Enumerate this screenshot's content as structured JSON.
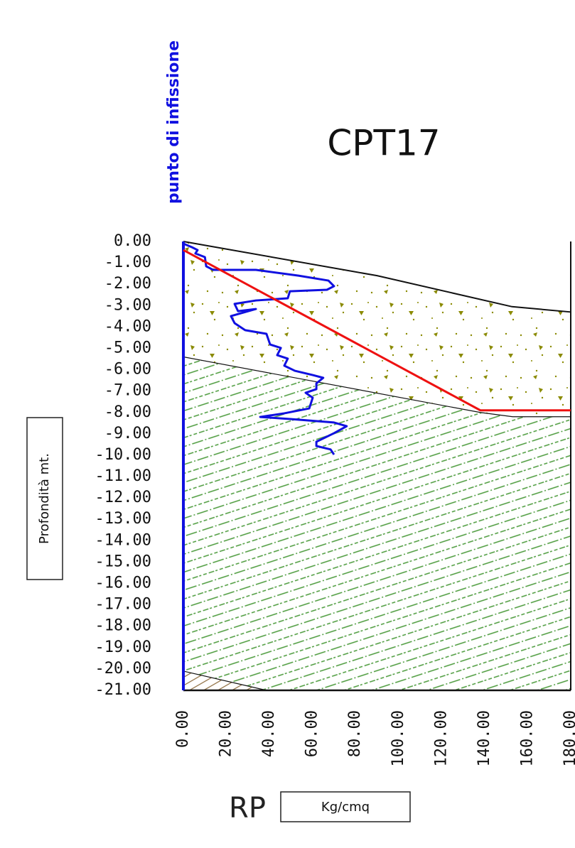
{
  "chart_data": {
    "type": "line",
    "title": "CPT17",
    "marker_label": "punto di infissione",
    "y_label": "Profondità mt.",
    "x_label": "RP",
    "x_unit": "Kg/cmq",
    "xlim": [
      0,
      180
    ],
    "ylim": [
      -21,
      0
    ],
    "xticks": [
      {
        "value": 0,
        "label": "0.00"
      },
      {
        "value": 20,
        "label": "20.00"
      },
      {
        "value": 40,
        "label": "40.00"
      },
      {
        "value": 60,
        "label": "60.00"
      },
      {
        "value": 80,
        "label": "80.00"
      },
      {
        "value": 100,
        "label": "100.00"
      },
      {
        "value": 120,
        "label": "120.00"
      },
      {
        "value": 140,
        "label": "140.00"
      },
      {
        "value": 160,
        "label": "160.00"
      },
      {
        "value": 180,
        "label": "180.00"
      }
    ],
    "yticks": [
      {
        "value": 0,
        "label": "0.00"
      },
      {
        "value": -1,
        "label": "-1.00"
      },
      {
        "value": -2,
        "label": "-2.00"
      },
      {
        "value": -3,
        "label": "-3.00"
      },
      {
        "value": -4,
        "label": "-4.00"
      },
      {
        "value": -5,
        "label": "-5.00"
      },
      {
        "value": -6,
        "label": "-6.00"
      },
      {
        "value": -7,
        "label": "-7.00"
      },
      {
        "value": -8,
        "label": "-8.00"
      },
      {
        "value": -9,
        "label": "-9.00"
      },
      {
        "value": -10,
        "label": "-10.00"
      },
      {
        "value": -11,
        "label": "-11.00"
      },
      {
        "value": -12,
        "label": "-12.00"
      },
      {
        "value": -13,
        "label": "-13.00"
      },
      {
        "value": -14,
        "label": "-14.00"
      },
      {
        "value": -15,
        "label": "-15.00"
      },
      {
        "value": -16,
        "label": "-16.00"
      },
      {
        "value": -17,
        "label": "-17.00"
      },
      {
        "value": -18,
        "label": "-18.00"
      },
      {
        "value": -19,
        "label": "-19.00"
      },
      {
        "value": -20,
        "label": "-20.00"
      },
      {
        "value": -21,
        "label": "-21.00"
      }
    ],
    "series": [
      {
        "color": "#1010e0",
        "x": [
          0,
          4,
          6.6,
          5.6,
          10,
          10.6,
          13.9,
          33.7,
          53.5,
          67.4,
          70,
          66.7,
          49.5,
          48.5,
          33.7,
          23.8,
          25.4,
          33.7,
          22.1,
          23.8,
          28.7,
          38.6,
          40.3,
          45.3,
          43.6,
          48.5,
          46.9,
          51.8,
          60.1,
          65,
          61.8,
          61.8,
          56.8,
          60.1,
          58.5,
          46.9,
          35.7,
          50.2,
          70,
          75.9,
          70,
          61.8,
          61.8,
          68.4,
          70
        ],
        "values": [
          -0.1,
          -0.27,
          -0.4,
          -0.56,
          -0.73,
          -1.16,
          -1.33,
          -1.33,
          -1.6,
          -1.83,
          -2.09,
          -2.26,
          -2.33,
          -2.66,
          -2.76,
          -2.92,
          -3.26,
          -3.16,
          -3.49,
          -3.82,
          -4.15,
          -4.32,
          -4.82,
          -4.98,
          -5.32,
          -5.48,
          -5.81,
          -6.05,
          -6.25,
          -6.38,
          -6.64,
          -6.91,
          -7.08,
          -7.31,
          -7.81,
          -8.04,
          -8.21,
          -8.31,
          -8.47,
          -8.64,
          -8.97,
          -9.37,
          -9.57,
          -9.73,
          -9.97
        ]
      },
      {
        "color": "#ee1111",
        "x": [
          0,
          138,
          180
        ],
        "values": [
          -0.4,
          -7.9,
          -7.9
        ]
      }
    ],
    "layers": [
      {
        "x": [
          0,
          90,
          152.7,
          180
        ],
        "values": [
          0,
          -1.6,
          -3.05,
          -3.3
        ]
      },
      {
        "x": [
          0,
          138,
          153,
          180
        ],
        "values": [
          -5.4,
          -8,
          -8.2,
          -8.2
        ]
      },
      {
        "x": [
          0,
          38.6
        ],
        "values": [
          -20.1,
          -21
        ]
      }
    ]
  }
}
